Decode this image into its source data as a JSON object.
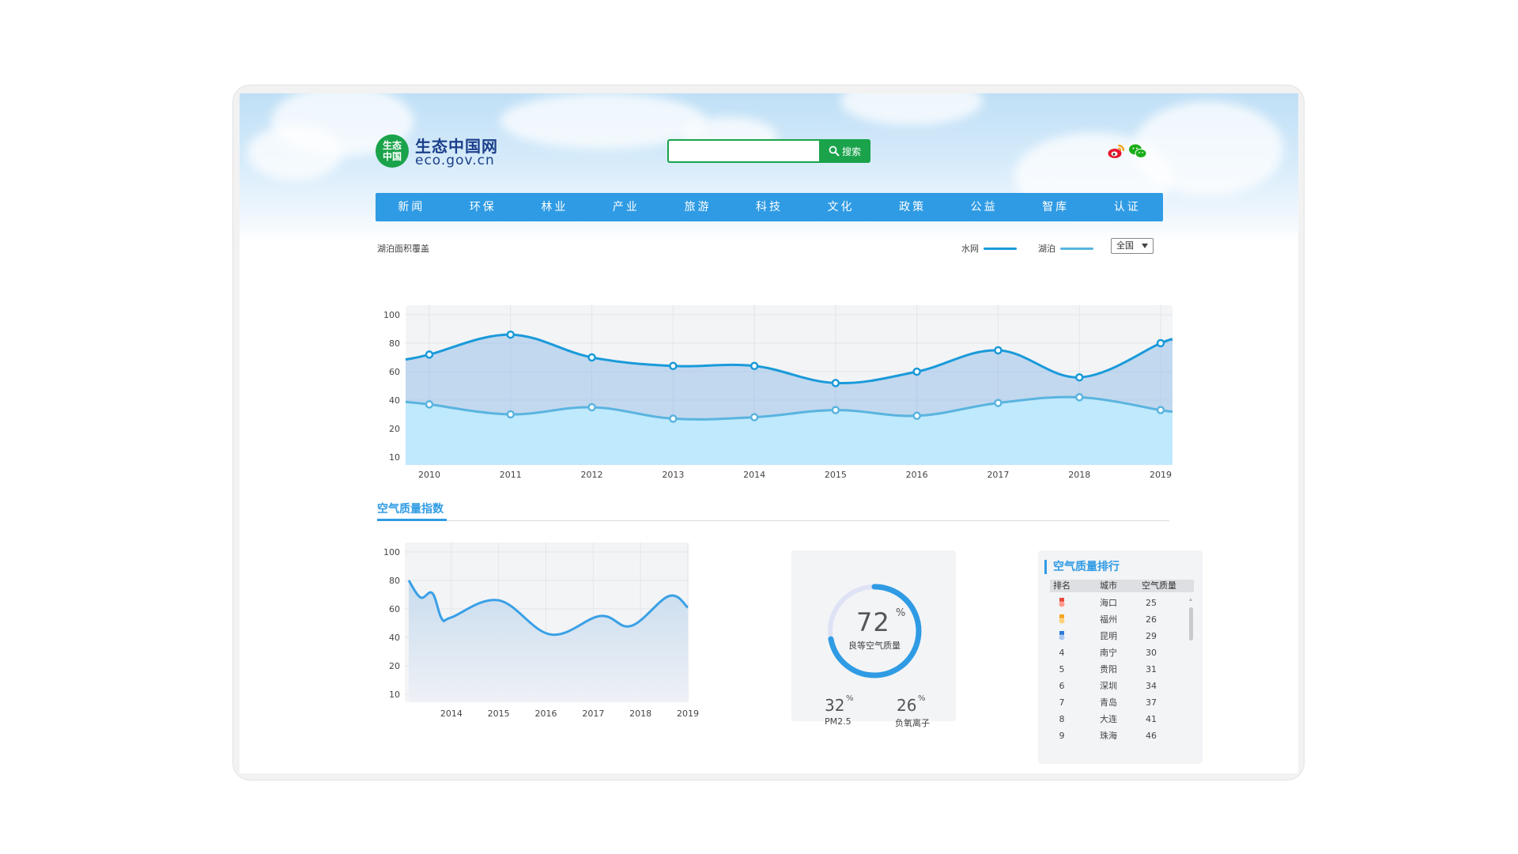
{
  "header": {
    "logo_badge_line1": "生态",
    "logo_badge_line2": "中国",
    "logo_title": "生态中国网",
    "logo_domain": "eco.gov.cn",
    "search": {
      "placeholder": "",
      "value": "",
      "button_label": "搜索"
    },
    "social": [
      {
        "icon": "weibo-icon"
      },
      {
        "icon": "wechat-icon"
      }
    ]
  },
  "nav": {
    "items": [
      "新闻",
      "环保",
      "林业",
      "产业",
      "旅游",
      "科技",
      "文化",
      "政策",
      "公益",
      "智库",
      "认证"
    ]
  },
  "colors": {
    "accent": "#2f9be4",
    "green": "#1aa34a",
    "water_net": "#1a9ad9",
    "lake": "#5ab4df"
  },
  "lake_section": {
    "title": "湖泊面积覆盖",
    "legend": [
      {
        "name": "水网",
        "color": "#1a9ad9"
      },
      {
        "name": "湖泊",
        "color": "#5ab4df"
      }
    ],
    "region_select": {
      "selected": "全国"
    }
  },
  "tabs": {
    "active": "空气质量指数"
  },
  "ring": {
    "value": 72,
    "unit": "%",
    "label": "良等空气质量"
  },
  "stats": [
    {
      "value": 32,
      "unit": "%",
      "label": "PM2.5"
    },
    {
      "value": 26,
      "unit": "%",
      "label": "负氧离子"
    }
  ],
  "ranking": {
    "title": "空气质量排行",
    "columns": [
      "排名",
      "城市",
      "空气质量"
    ],
    "rows": [
      {
        "rank": "",
        "medal": "gold",
        "city": "海口",
        "value": "25"
      },
      {
        "rank": "",
        "medal": "silver",
        "city": "福州",
        "value": "26"
      },
      {
        "rank": "",
        "medal": "bronze",
        "city": "昆明",
        "value": "29"
      },
      {
        "rank": "4",
        "city": "南宁",
        "value": "30"
      },
      {
        "rank": "5",
        "city": "贵阳",
        "value": "31"
      },
      {
        "rank": "6",
        "city": "深圳",
        "value": "34"
      },
      {
        "rank": "7",
        "city": "青岛",
        "value": "37"
      },
      {
        "rank": "8",
        "city": "大连",
        "value": "41"
      },
      {
        "rank": "9",
        "city": "珠海",
        "value": "46"
      }
    ]
  },
  "chart_data": [
    {
      "type": "area",
      "title": "湖泊面积覆盖",
      "x": [
        "2010",
        "2011",
        "2012",
        "2013",
        "2014",
        "2015",
        "2016",
        "2017",
        "2018",
        "2019"
      ],
      "y_ticks": [
        10,
        20,
        40,
        60,
        80,
        100
      ],
      "grid": true,
      "legend_position": "top-right",
      "series": [
        {
          "name": "水网",
          "color": "#1a9ad9",
          "values": [
            72,
            86,
            70,
            64,
            64,
            52,
            60,
            75,
            56,
            80
          ]
        },
        {
          "name": "湖泊",
          "color": "#5ab4df",
          "values": [
            37,
            30,
            35,
            27,
            28,
            33,
            29,
            38,
            42,
            33
          ]
        }
      ]
    },
    {
      "type": "area",
      "title": "空气质量指数",
      "x": [
        "2014",
        "2015",
        "2016",
        "2017",
        "2018",
        "2019"
      ],
      "y_ticks": [
        10,
        20,
        40,
        60,
        80,
        100
      ],
      "grid": true,
      "series": [
        {
          "color": "#3aa0e6",
          "x": [
            2013.1,
            2013.35,
            2013.6,
            2013.8,
            2014,
            2015,
            2016.1,
            2017.15,
            2017.8,
            2018.6,
            2019
          ],
          "values": [
            80,
            68,
            71,
            53,
            54,
            66,
            42,
            55,
            48,
            69,
            61
          ]
        }
      ]
    }
  ]
}
